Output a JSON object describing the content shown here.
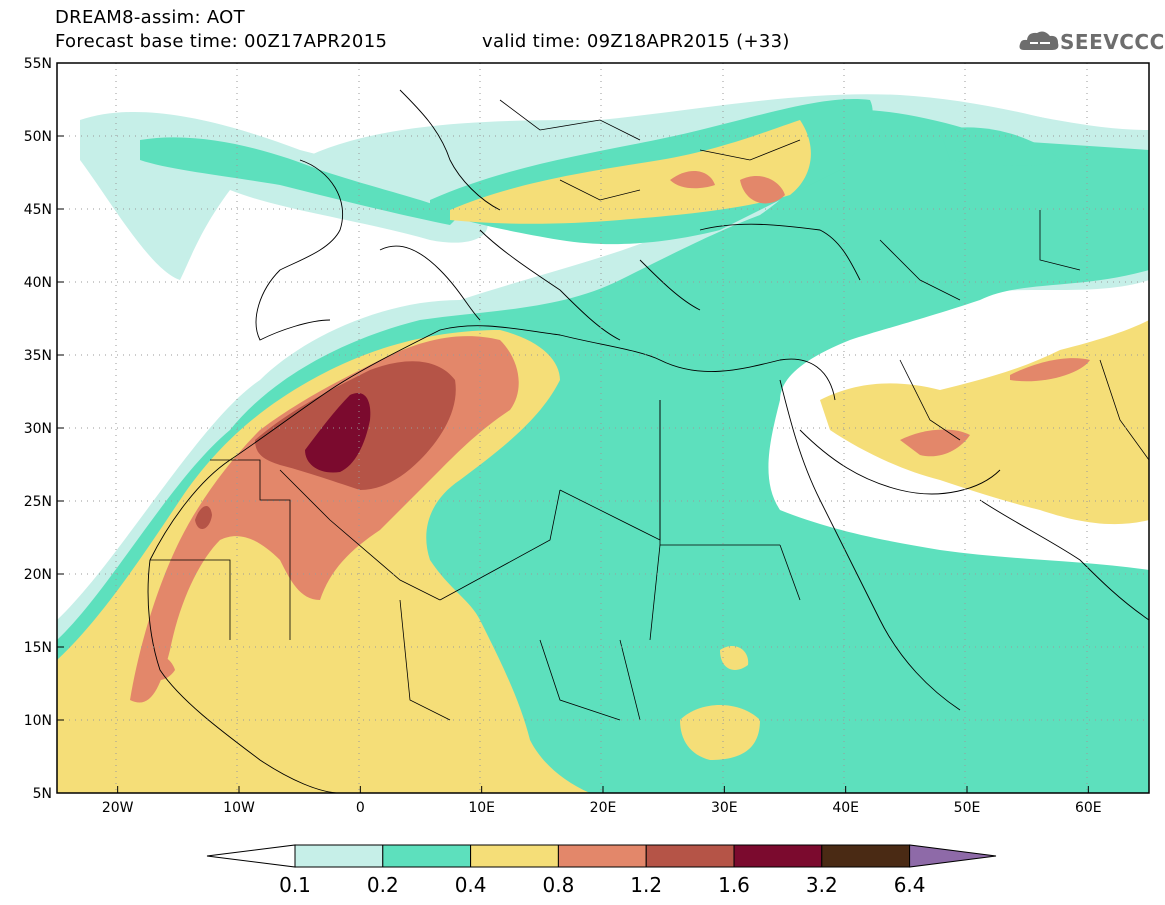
{
  "header": {
    "title_line1": "DREAM8-assim: AOT",
    "title_line2": "Forecast base time: 00Z17APR2015",
    "valid_time": "valid time: 09Z18APR2015 (+33)",
    "logo_text": "SEEVCCC"
  },
  "map": {
    "lat_labels": [
      "55N",
      "50N",
      "45N",
      "40N",
      "35N",
      "30N",
      "25N",
      "20N",
      "15N",
      "10N",
      "5N"
    ],
    "lon_labels": [
      "20W",
      "10W",
      "0",
      "10E",
      "20E",
      "30E",
      "40E",
      "50E",
      "60E"
    ]
  },
  "colorbar": {
    "labels": [
      "0.1",
      "0.2",
      "0.4",
      "0.8",
      "1.2",
      "1.6",
      "3.2",
      "6.4"
    ],
    "colors": [
      "#c6efe8",
      "#5de0bd",
      "#f5de78",
      "#e3876a",
      "#b55447",
      "#7b0a2e",
      "#4a2a14",
      "#8e6aa8"
    ]
  },
  "colors": {
    "c1": "#c6efe8",
    "c2": "#5de0bd",
    "c3": "#f5de78",
    "c4": "#e3876a",
    "c5": "#b55447",
    "c6": "#7b0a2e"
  }
}
